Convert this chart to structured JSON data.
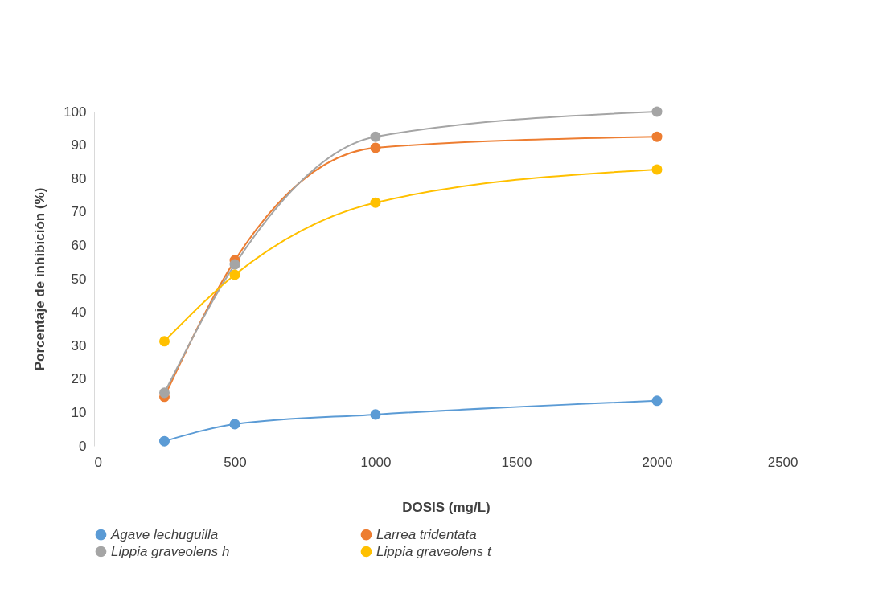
{
  "chart_data": {
    "type": "line",
    "xlabel": "DOSIS (mg/L)",
    "ylabel": "Porcentaje de inhibición (%)",
    "xlim": [
      0,
      2500
    ],
    "xticks": [
      0,
      500,
      1000,
      1500,
      2000,
      2500
    ],
    "ylim": [
      0,
      100
    ],
    "yticks": [
      0,
      10,
      20,
      30,
      40,
      50,
      60,
      70,
      80,
      90,
      100
    ],
    "x": [
      250,
      500,
      1000,
      2000
    ],
    "series": [
      {
        "name": "Agave lechuguilla",
        "color": "#5b9bd5",
        "values": [
          1.4,
          6.5,
          9.4,
          13.5
        ]
      },
      {
        "name": "Larrea tridentata",
        "color": "#ed7d31",
        "values": [
          14.7,
          55.5,
          89.2,
          92.5
        ]
      },
      {
        "name": "Lippia graveolens h",
        "color": "#a5a5a5",
        "values": [
          15.9,
          54.3,
          92.5,
          100
        ]
      },
      {
        "name": "Lippia graveolens t",
        "color": "#ffc000",
        "values": [
          31.3,
          51.2,
          72.8,
          82.7
        ]
      }
    ],
    "marker": "circle",
    "line_style": "solid",
    "grid": false,
    "legend": "bottom"
  }
}
